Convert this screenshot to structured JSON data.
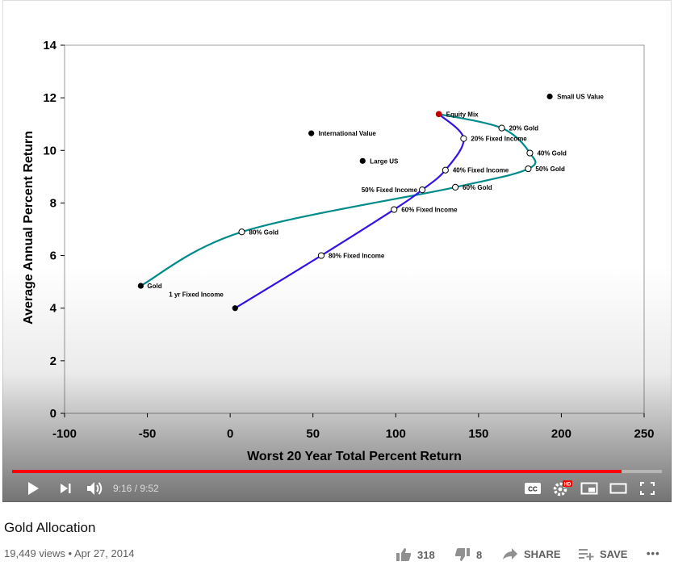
{
  "chart_data": {
    "type": "line",
    "title": "",
    "xlabel": "Worst 20 Year Total Percent Return",
    "ylabel": "Average Annual Percent Return",
    "xlim": [
      -100,
      250
    ],
    "ylim": [
      0,
      14
    ],
    "x_ticks": [
      "-100",
      "-50",
      "0",
      "50",
      "100",
      "150",
      "200",
      "250"
    ],
    "y_ticks": [
      "0",
      "2",
      "4",
      "6",
      "8",
      "10",
      "12",
      "14"
    ],
    "grid": false,
    "legend": "none",
    "colors": {
      "gold_curve": "#008b8b",
      "fixed_income_curve": "#3314e6",
      "equity_marker": "#c00000",
      "marker": "#000000"
    },
    "series": [
      {
        "name": "",
        "color": "#008b8b",
        "points": [
          {
            "label": "Gold",
            "x": -54,
            "y": 4.85
          },
          {
            "label": "80% Gold",
            "x": 7,
            "y": 6.9
          },
          {
            "label": "60% Gold",
            "x": 136,
            "y": 8.6
          },
          {
            "label": "50% Gold",
            "x": 180,
            "y": 9.3
          },
          {
            "label": "40% Gold",
            "x": 181,
            "y": 9.9
          },
          {
            "label": "20% Gold",
            "x": 164,
            "y": 10.85
          },
          {
            "label": "Equity Mix",
            "x": 126,
            "y": 11.38
          }
        ]
      },
      {
        "name": "",
        "color": "#3314e6",
        "points": [
          {
            "label": "1 yr Fixed Income",
            "x": 3,
            "y": 4.0
          },
          {
            "label": "80% Fixed Income",
            "x": 55,
            "y": 6.0
          },
          {
            "label": "60% Fixed Income",
            "x": 99,
            "y": 7.75
          },
          {
            "label": "50% Fixed Income",
            "x": 116,
            "y": 8.5
          },
          {
            "label": "40% Fixed Income",
            "x": 130,
            "y": 9.25
          },
          {
            "label": "20% Fixed Income",
            "x": 141,
            "y": 10.45
          },
          {
            "label": "Equity Mix",
            "x": 126,
            "y": 11.38
          }
        ]
      }
    ],
    "standalone_points": [
      {
        "label": "International Value",
        "x": 49,
        "y": 10.65
      },
      {
        "label": "Large US",
        "x": 80,
        "y": 9.6
      },
      {
        "label": "Small US Value",
        "x": 193,
        "y": 12.05
      }
    ]
  },
  "player": {
    "time_text": "9:16 / 9:52",
    "progress": 0.938,
    "icons": {
      "play": "play-icon",
      "next": "next-icon",
      "volume": "volume-icon",
      "cc": "cc-icon",
      "settings": "settings-icon",
      "miniplayer": "miniplayer-icon",
      "theater": "theater-icon",
      "fullscreen": "fullscreen-icon"
    },
    "cc_label": "CC",
    "hd_badge": "HD"
  },
  "video": {
    "title": "Gold Allocation",
    "views": "19,449 views",
    "separator": "•",
    "date": "Apr 27, 2014"
  },
  "actions": {
    "likes": "318",
    "dislikes": "8",
    "share": "SHARE",
    "save": "SAVE",
    "more": "•••"
  }
}
